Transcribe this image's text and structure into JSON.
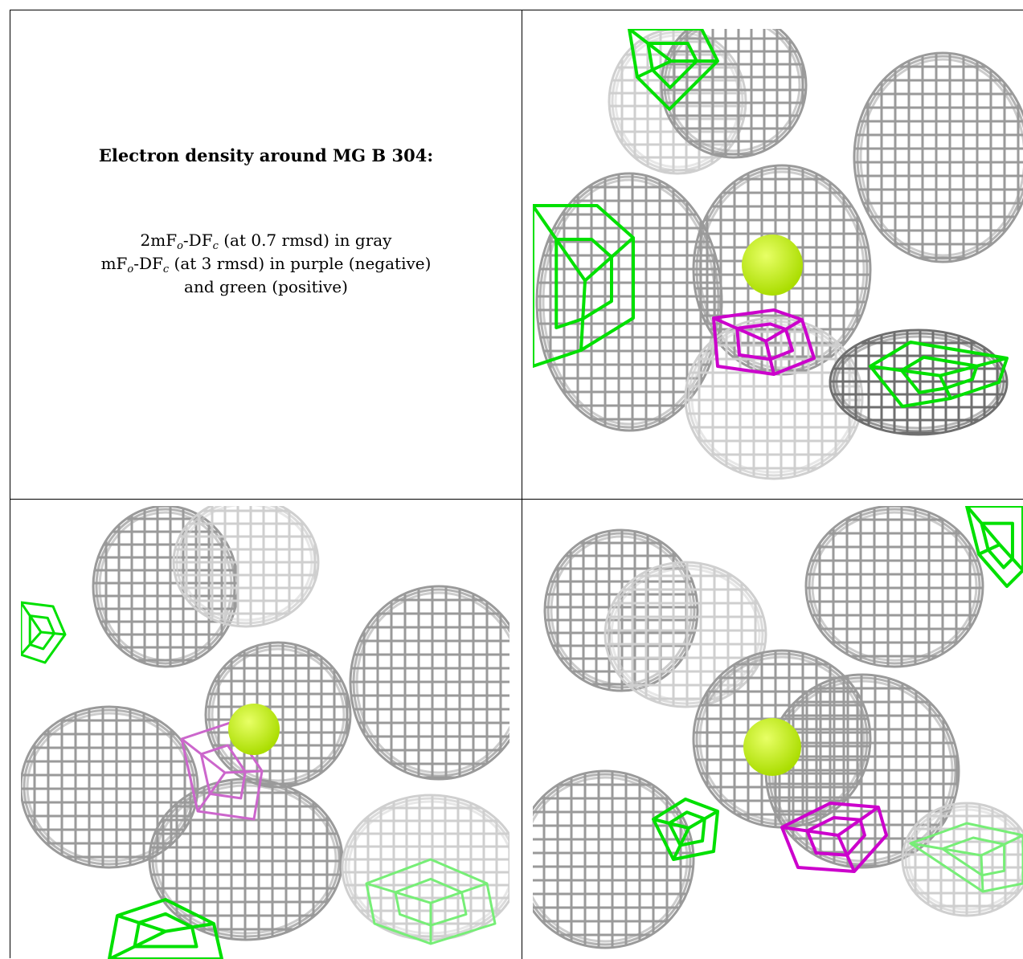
{
  "caption": {
    "title": "Electron density around MG B 304:",
    "line1": {
      "a": "2mF",
      "sub1": "o",
      "b": "-DF",
      "sub2": "c",
      "c": " (at 0.7 rmsd) in gray"
    },
    "line2": {
      "a": "mF",
      "sub1": "o",
      "b": "-DF",
      "sub2": "c",
      "c": " (at 3 rmsd) in purple (negative)"
    },
    "line3": "and green (positive)"
  },
  "colors": {
    "mesh_gray": "#9a9a9a",
    "mesh_gray_light": "#cfcfcf",
    "mesh_gray_dark": "#6f6f6f",
    "negative_purple": "#cc00cc",
    "positive_green": "#00e000",
    "mg_atom": "#aadd00"
  },
  "panels": [
    {
      "name": "view-top-right"
    },
    {
      "name": "view-bottom-left"
    },
    {
      "name": "view-bottom-right"
    }
  ]
}
